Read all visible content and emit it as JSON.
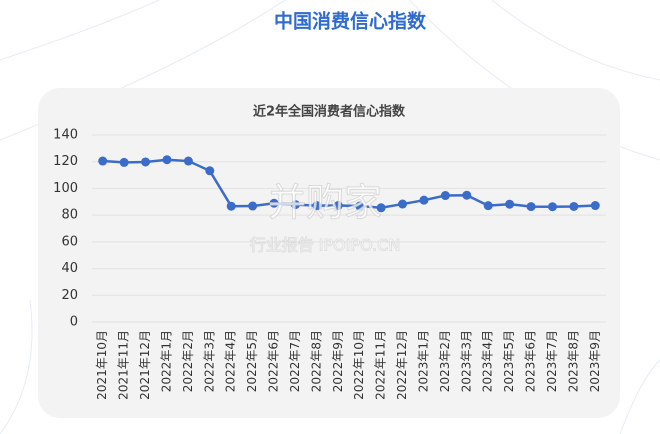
{
  "page_title": "中国消费信心指数",
  "watermark": {
    "brand": "并购家",
    "caption": "行业报告 IPOIPO.CN"
  },
  "chart_data": {
    "type": "line",
    "title": "近2年全国消费者信心指数",
    "categories": [
      "2021年10月",
      "2021年11月",
      "2021年12月",
      "2022年1月",
      "2022年2月",
      "2022年3月",
      "2022年4月",
      "2022年5月",
      "2022年6月",
      "2022年7月",
      "2022年8月",
      "2022年9月",
      "2022年10月",
      "2022年11月",
      "2022年12月",
      "2023年1月",
      "2023年2月",
      "2023年3月",
      "2023年4月",
      "2023年5月",
      "2023年6月",
      "2023年7月",
      "2023年8月",
      "2023年9月"
    ],
    "values": [
      120.5,
      119.5,
      119.8,
      121.5,
      120.5,
      113.2,
      86.7,
      86.8,
      88.9,
      87.9,
      87.1,
      87.2,
      86.8,
      85.5,
      88.3,
      91.2,
      94.7,
      94.9,
      87.1,
      88.2,
      86.4,
      86.3,
      86.5,
      87.2
    ],
    "color": "#3b6cc9",
    "ylim": [
      0,
      140
    ],
    "yticks": [
      0,
      20,
      40,
      60,
      80,
      100,
      120,
      140
    ],
    "grid": true
  }
}
